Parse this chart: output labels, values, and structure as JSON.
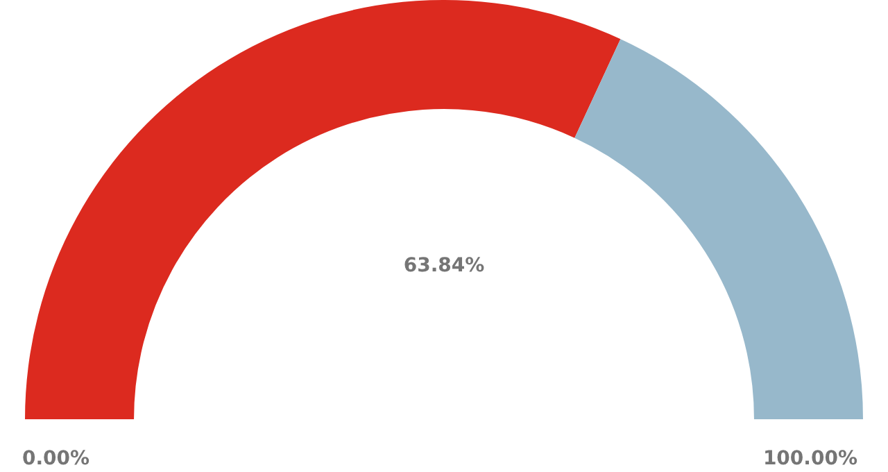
{
  "chart_data": {
    "type": "donut",
    "categories": [
      null,
      null
    ],
    "values": [
      63.84,
      36.16
    ],
    "colors": [
      "#dc2a1f",
      "#97b8cb"
    ],
    "value_labels": [
      "63.84%",
      null
    ],
    "annotations": [
      "0.00%",
      "100.00%"
    ],
    "legend": false
  }
}
